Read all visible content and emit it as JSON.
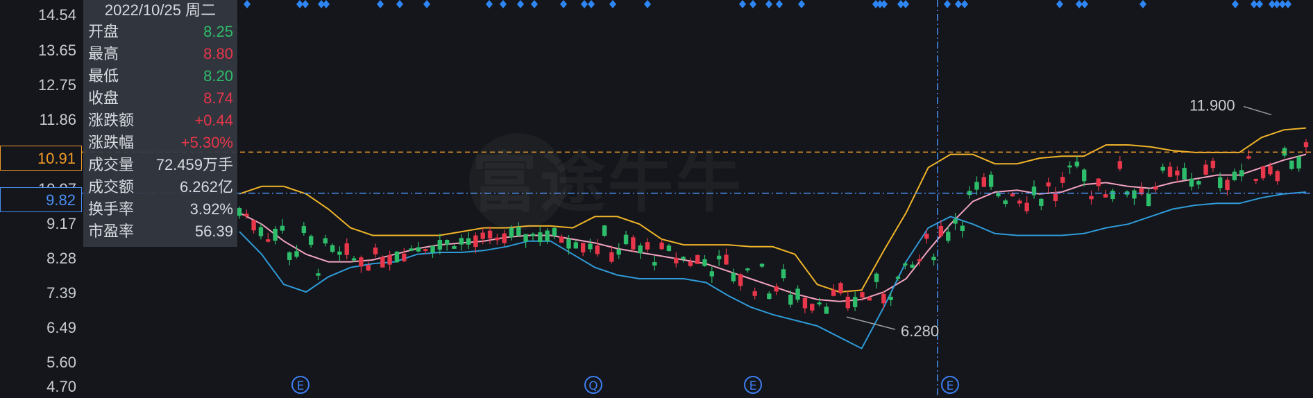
{
  "colors": {
    "up": "#e8364a",
    "down": "#2ebd6b",
    "ma_yellow": "#f0b429",
    "ma_pink": "#f3a3bf",
    "ma_blue": "#2f9bd8",
    "dot_blue": "#2e86f5",
    "current_price": "#f29b2a",
    "cursor_price": "#4a90f5",
    "panel_bg": "#343840",
    "label_gray": "#c9ccd3"
  },
  "y_axis": {
    "labels": [
      "14.54",
      "13.65",
      "12.75",
      "11.86",
      "10.97",
      "9.17",
      "8.28",
      "7.39",
      "6.49",
      "5.60",
      "4.70"
    ]
  },
  "current_price_tag": "10.91",
  "cursor_price_tag": "9.82",
  "watermark": "富途牛牛",
  "info_panel": {
    "date": "2022/10/25 周二",
    "rows": [
      {
        "label": "开盘",
        "value": "8.25",
        "color": "down"
      },
      {
        "label": "最高",
        "value": "8.80",
        "color": "up"
      },
      {
        "label": "最低",
        "value": "8.20",
        "color": "down"
      },
      {
        "label": "收盘",
        "value": "8.74",
        "color": "up"
      },
      {
        "label": "涨跌额",
        "value": "+0.44",
        "color": "up"
      },
      {
        "label": "涨跌幅",
        "value": "+5.30%",
        "color": "up"
      },
      {
        "label": "成交量",
        "value": "72.459万手",
        "color": "neutral"
      },
      {
        "label": "成交额",
        "value": "6.262亿",
        "color": "neutral"
      },
      {
        "label": "换手率",
        "value": "3.92%",
        "color": "neutral"
      },
      {
        "label": "市盈率",
        "value": "56.39",
        "color": "neutral"
      }
    ]
  },
  "annotations": {
    "high_label": "11.900",
    "low_label": "6.280"
  },
  "event_badges": [
    "E",
    "Q",
    "E",
    "E"
  ],
  "chart_data": {
    "type": "candlestick",
    "ylim": [
      4.7,
      14.54
    ],
    "high_marker": 11.9,
    "low_marker": 6.28,
    "current_price": 10.91,
    "crosshair_price": 9.82,
    "crosshair_date": "2022/10/25",
    "series": [
      {
        "name": "",
        "color": "ma_yellow",
        "values": [
          9.8,
          10.0,
          10.0,
          9.8,
          9.4,
          8.9,
          8.7,
          8.7,
          8.7,
          8.7,
          8.8,
          8.9,
          8.9,
          8.95,
          8.95,
          8.9,
          9.2,
          9.2,
          9.0,
          8.6,
          8.45,
          8.45,
          8.45,
          8.4,
          8.4,
          8.2,
          7.4,
          7.2,
          7.25,
          8.3,
          9.3,
          10.5,
          10.85,
          10.85,
          10.6,
          10.6,
          10.75,
          10.8,
          10.8,
          11.1,
          11.1,
          11.05,
          10.95,
          10.9,
          10.9,
          10.9,
          11.3,
          11.5,
          11.55
        ]
      },
      {
        "name": "",
        "color": "ma_pink",
        "values": [
          9.3,
          9.0,
          8.55,
          8.2,
          8.0,
          8.0,
          8.05,
          8.2,
          8.35,
          8.45,
          8.5,
          8.55,
          8.65,
          8.7,
          8.7,
          8.6,
          8.5,
          8.35,
          8.25,
          8.15,
          8.05,
          7.95,
          7.75,
          7.55,
          7.35,
          7.15,
          7.0,
          6.95,
          7.0,
          7.2,
          7.55,
          8.3,
          9.0,
          9.6,
          9.85,
          9.9,
          9.8,
          9.85,
          10.05,
          10.1,
          10.0,
          9.95,
          10.1,
          10.2,
          10.3,
          10.3,
          10.5,
          10.7,
          10.85
        ]
      },
      {
        "name": "",
        "color": "ma_blue",
        "values": [
          8.8,
          8.2,
          7.4,
          7.2,
          7.6,
          7.85,
          7.95,
          8.0,
          8.2,
          8.25,
          8.25,
          8.3,
          8.4,
          8.55,
          8.55,
          8.2,
          7.85,
          7.65,
          7.55,
          7.55,
          7.55,
          7.45,
          7.1,
          6.8,
          6.6,
          6.45,
          6.3,
          6.0,
          5.7,
          6.8,
          8.0,
          8.9,
          9.2,
          9.0,
          8.75,
          8.7,
          8.7,
          8.7,
          8.75,
          8.9,
          9.0,
          9.2,
          9.4,
          9.5,
          9.55,
          9.55,
          9.7,
          9.8,
          9.85
        ]
      }
    ]
  }
}
